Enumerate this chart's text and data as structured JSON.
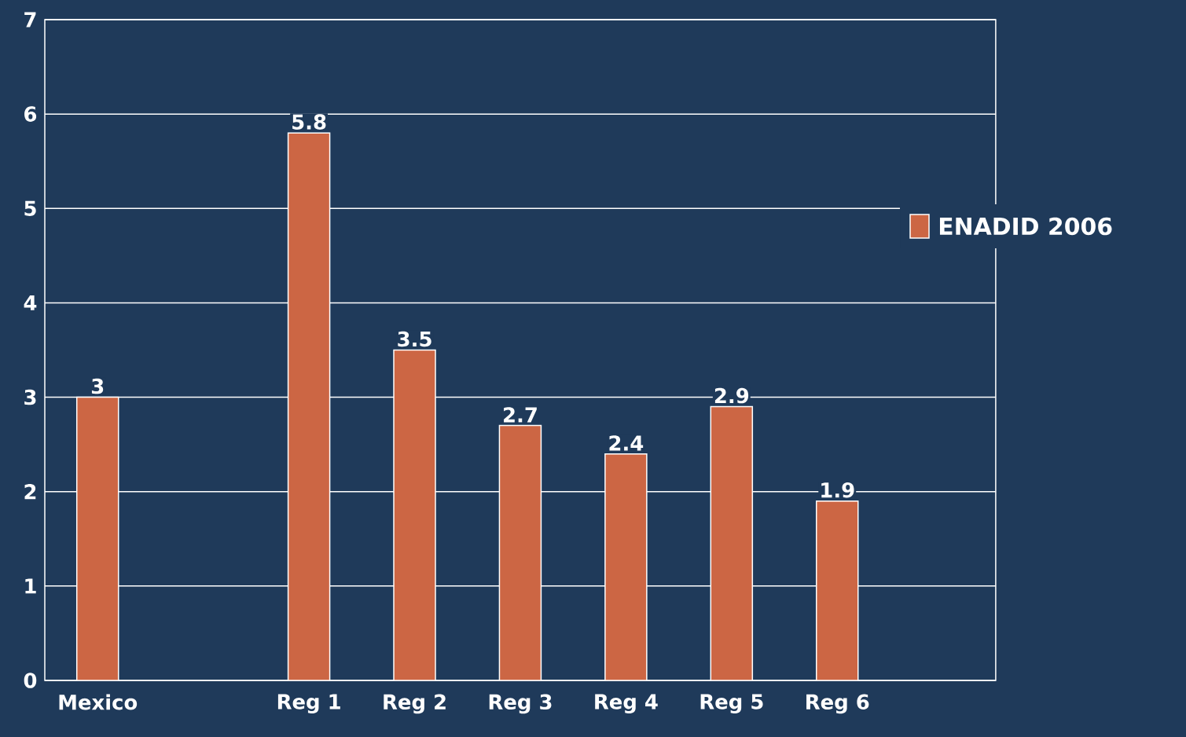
{
  "chart_data": {
    "type": "bar",
    "categories": [
      "Mexico",
      null,
      "Reg 1",
      "Reg 2",
      "Reg 3",
      "Reg 4",
      "Reg 5",
      "Reg 6",
      null
    ],
    "series": [
      {
        "name": "ENADID 2006",
        "color": "#cc6644",
        "values": [
          3,
          null,
          5.8,
          3.5,
          2.7,
          2.4,
          2.9,
          1.9,
          null
        ]
      }
    ],
    "ylim": [
      0,
      7
    ],
    "yticks": [
      0,
      1,
      2,
      3,
      4,
      5,
      6,
      7
    ],
    "grid": "y",
    "legend": "right",
    "data_labels": true
  }
}
